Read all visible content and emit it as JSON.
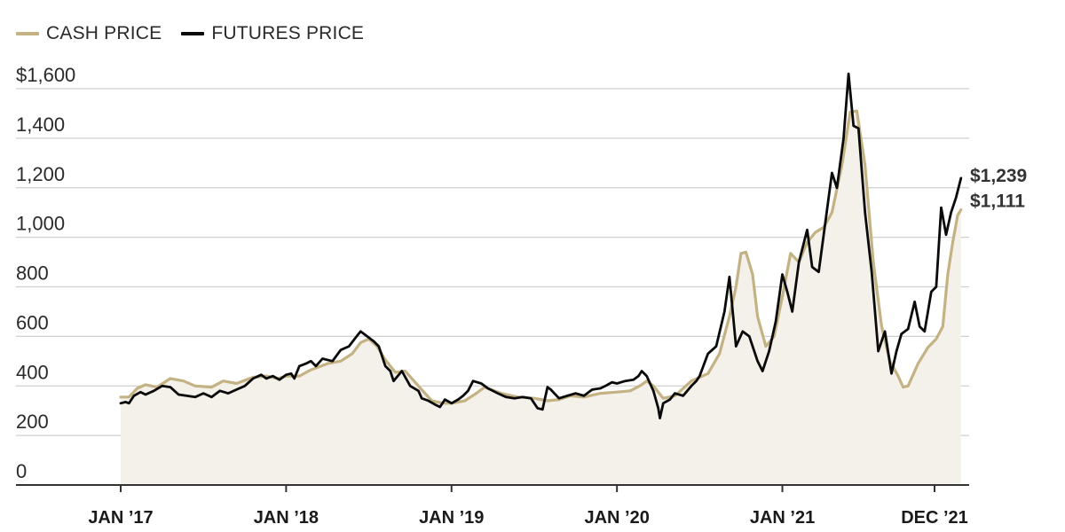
{
  "legend": {
    "cash_label": "CASH PRICE",
    "futures_label": "FUTURES PRICE"
  },
  "colors": {
    "cash": "#c3b283",
    "futures": "#0a0a0a",
    "fill": "#f4f1ea",
    "grid": "#cfcfcf",
    "axis": "#333333"
  },
  "chart_data": {
    "type": "line",
    "title": "",
    "xlabel": "",
    "ylabel": "",
    "ylim": [
      0,
      1600
    ],
    "y_ticks": [
      0,
      200,
      400,
      600,
      800,
      1000,
      1200,
      1400,
      1600
    ],
    "y_tick_labels": [
      "0",
      "200",
      "400",
      "600",
      "800",
      "1,000",
      "1,200",
      "1,400",
      "$1,600"
    ],
    "x_ticks": [
      {
        "x": 2017.0,
        "label": "JAN ’17"
      },
      {
        "x": 2018.0,
        "label": "JAN ’18"
      },
      {
        "x": 2019.0,
        "label": "JAN ’19"
      },
      {
        "x": 2020.0,
        "label": "JAN ’20"
      },
      {
        "x": 2021.0,
        "label": "JAN ’21"
      },
      {
        "x": 2021.92,
        "label": "DEC ’21"
      }
    ],
    "xlim": [
      2016.98,
      2022.2
    ],
    "grid": true,
    "legend_position": "top-left",
    "end_labels": {
      "futures": "$1,239",
      "cash": "$1,111"
    },
    "series": [
      {
        "name": "CASH PRICE",
        "key": "cash",
        "points": [
          [
            2017.0,
            355
          ],
          [
            2017.05,
            355
          ],
          [
            2017.1,
            390
          ],
          [
            2017.15,
            405
          ],
          [
            2017.22,
            395
          ],
          [
            2017.3,
            430
          ],
          [
            2017.38,
            420
          ],
          [
            2017.45,
            400
          ],
          [
            2017.55,
            395
          ],
          [
            2017.62,
            420
          ],
          [
            2017.7,
            410
          ],
          [
            2017.8,
            435
          ],
          [
            2017.88,
            440
          ],
          [
            2017.95,
            430
          ],
          [
            2018.0,
            440
          ],
          [
            2018.08,
            440
          ],
          [
            2018.15,
            465
          ],
          [
            2018.25,
            490
          ],
          [
            2018.33,
            500
          ],
          [
            2018.4,
            530
          ],
          [
            2018.45,
            575
          ],
          [
            2018.5,
            590
          ],
          [
            2018.55,
            560
          ],
          [
            2018.6,
            505
          ],
          [
            2018.66,
            455
          ],
          [
            2018.72,
            460
          ],
          [
            2018.8,
            400
          ],
          [
            2018.88,
            340
          ],
          [
            2018.95,
            330
          ],
          [
            2019.0,
            330
          ],
          [
            2019.08,
            340
          ],
          [
            2019.15,
            370
          ],
          [
            2019.2,
            395
          ],
          [
            2019.3,
            370
          ],
          [
            2019.4,
            355
          ],
          [
            2019.5,
            350
          ],
          [
            2019.58,
            340
          ],
          [
            2019.65,
            345
          ],
          [
            2019.72,
            360
          ],
          [
            2019.8,
            355
          ],
          [
            2019.9,
            370
          ],
          [
            2020.0,
            375
          ],
          [
            2020.08,
            380
          ],
          [
            2020.15,
            405
          ],
          [
            2020.18,
            420
          ],
          [
            2020.22,
            400
          ],
          [
            2020.28,
            350
          ],
          [
            2020.35,
            360
          ],
          [
            2020.45,
            420
          ],
          [
            2020.55,
            450
          ],
          [
            2020.62,
            530
          ],
          [
            2020.68,
            680
          ],
          [
            2020.72,
            800
          ],
          [
            2020.75,
            935
          ],
          [
            2020.78,
            940
          ],
          [
            2020.82,
            850
          ],
          [
            2020.85,
            680
          ],
          [
            2020.9,
            560
          ],
          [
            2020.95,
            600
          ],
          [
            2021.0,
            760
          ],
          [
            2021.05,
            935
          ],
          [
            2021.1,
            900
          ],
          [
            2021.15,
            980
          ],
          [
            2021.2,
            1020
          ],
          [
            2021.25,
            1040
          ],
          [
            2021.3,
            1100
          ],
          [
            2021.36,
            1290
          ],
          [
            2021.41,
            1505
          ],
          [
            2021.45,
            1510
          ],
          [
            2021.5,
            1290
          ],
          [
            2021.55,
            900
          ],
          [
            2021.6,
            640
          ],
          [
            2021.65,
            500
          ],
          [
            2021.7,
            440
          ],
          [
            2021.73,
            395
          ],
          [
            2021.76,
            400
          ],
          [
            2021.82,
            490
          ],
          [
            2021.88,
            555
          ],
          [
            2021.93,
            590
          ],
          [
            2021.97,
            640
          ],
          [
            2022.0,
            850
          ],
          [
            2022.03,
            980
          ],
          [
            2022.06,
            1090
          ],
          [
            2022.08,
            1111
          ]
        ]
      },
      {
        "name": "FUTURES PRICE",
        "key": "futures",
        "points": [
          [
            2017.0,
            330
          ],
          [
            2017.03,
            335
          ],
          [
            2017.05,
            330
          ],
          [
            2017.08,
            360
          ],
          [
            2017.12,
            375
          ],
          [
            2017.15,
            365
          ],
          [
            2017.2,
            380
          ],
          [
            2017.25,
            400
          ],
          [
            2017.3,
            395
          ],
          [
            2017.35,
            365
          ],
          [
            2017.4,
            360
          ],
          [
            2017.45,
            355
          ],
          [
            2017.5,
            370
          ],
          [
            2017.55,
            355
          ],
          [
            2017.6,
            380
          ],
          [
            2017.65,
            370
          ],
          [
            2017.7,
            385
          ],
          [
            2017.75,
            400
          ],
          [
            2017.8,
            430
          ],
          [
            2017.85,
            445
          ],
          [
            2017.88,
            430
          ],
          [
            2017.92,
            440
          ],
          [
            2017.96,
            425
          ],
          [
            2018.0,
            445
          ],
          [
            2018.03,
            450
          ],
          [
            2018.05,
            430
          ],
          [
            2018.08,
            480
          ],
          [
            2018.12,
            490
          ],
          [
            2018.15,
            500
          ],
          [
            2018.18,
            480
          ],
          [
            2018.22,
            510
          ],
          [
            2018.28,
            500
          ],
          [
            2018.33,
            545
          ],
          [
            2018.38,
            560
          ],
          [
            2018.42,
            595
          ],
          [
            2018.45,
            620
          ],
          [
            2018.5,
            595
          ],
          [
            2018.53,
            580
          ],
          [
            2018.56,
            560
          ],
          [
            2018.6,
            480
          ],
          [
            2018.63,
            460
          ],
          [
            2018.65,
            420
          ],
          [
            2018.7,
            460
          ],
          [
            2018.75,
            400
          ],
          [
            2018.8,
            380
          ],
          [
            2018.82,
            350
          ],
          [
            2018.86,
            340
          ],
          [
            2018.9,
            325
          ],
          [
            2018.93,
            315
          ],
          [
            2018.96,
            345
          ],
          [
            2019.0,
            330
          ],
          [
            2019.04,
            345
          ],
          [
            2019.07,
            360
          ],
          [
            2019.1,
            380
          ],
          [
            2019.13,
            420
          ],
          [
            2019.18,
            410
          ],
          [
            2019.22,
            390
          ],
          [
            2019.28,
            370
          ],
          [
            2019.33,
            355
          ],
          [
            2019.38,
            350
          ],
          [
            2019.43,
            355
          ],
          [
            2019.48,
            350
          ],
          [
            2019.52,
            310
          ],
          [
            2019.55,
            305
          ],
          [
            2019.58,
            395
          ],
          [
            2019.6,
            385
          ],
          [
            2019.65,
            350
          ],
          [
            2019.7,
            360
          ],
          [
            2019.75,
            370
          ],
          [
            2019.8,
            360
          ],
          [
            2019.85,
            385
          ],
          [
            2019.9,
            390
          ],
          [
            2019.93,
            400
          ],
          [
            2019.97,
            415
          ],
          [
            2020.0,
            410
          ],
          [
            2020.05,
            420
          ],
          [
            2020.1,
            425
          ],
          [
            2020.13,
            440
          ],
          [
            2020.15,
            460
          ],
          [
            2020.18,
            440
          ],
          [
            2020.22,
            380
          ],
          [
            2020.25,
            310
          ],
          [
            2020.26,
            270
          ],
          [
            2020.28,
            330
          ],
          [
            2020.32,
            345
          ],
          [
            2020.35,
            370
          ],
          [
            2020.4,
            360
          ],
          [
            2020.45,
            400
          ],
          [
            2020.48,
            420
          ],
          [
            2020.5,
            440
          ],
          [
            2020.55,
            530
          ],
          [
            2020.6,
            560
          ],
          [
            2020.65,
            700
          ],
          [
            2020.68,
            840
          ],
          [
            2020.72,
            560
          ],
          [
            2020.76,
            620
          ],
          [
            2020.8,
            600
          ],
          [
            2020.85,
            500
          ],
          [
            2020.88,
            460
          ],
          [
            2020.92,
            540
          ],
          [
            2020.96,
            660
          ],
          [
            2021.0,
            850
          ],
          [
            2021.03,
            780
          ],
          [
            2021.06,
            700
          ],
          [
            2021.1,
            900
          ],
          [
            2021.15,
            1030
          ],
          [
            2021.18,
            880
          ],
          [
            2021.22,
            860
          ],
          [
            2021.25,
            1010
          ],
          [
            2021.3,
            1260
          ],
          [
            2021.33,
            1200
          ],
          [
            2021.37,
            1400
          ],
          [
            2021.4,
            1660
          ],
          [
            2021.43,
            1450
          ],
          [
            2021.46,
            1440
          ],
          [
            2021.5,
            1100
          ],
          [
            2021.54,
            860
          ],
          [
            2021.58,
            540
          ],
          [
            2021.62,
            620
          ],
          [
            2021.66,
            450
          ],
          [
            2021.69,
            540
          ],
          [
            2021.72,
            610
          ],
          [
            2021.76,
            630
          ],
          [
            2021.8,
            740
          ],
          [
            2021.83,
            640
          ],
          [
            2021.86,
            620
          ],
          [
            2021.9,
            780
          ],
          [
            2021.93,
            800
          ],
          [
            2021.96,
            1120
          ],
          [
            2021.99,
            1010
          ],
          [
            2022.02,
            1100
          ],
          [
            2022.05,
            1160
          ],
          [
            2022.08,
            1239
          ]
        ]
      }
    ]
  }
}
